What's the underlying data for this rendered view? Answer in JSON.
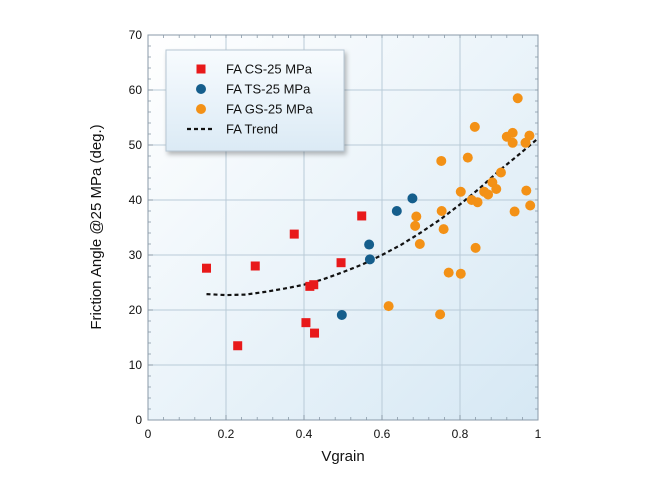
{
  "chart_data": {
    "type": "scatter",
    "title": "",
    "xlabel": "Vgrain",
    "ylabel": "Friction Angle @25 MPa (deg.)",
    "xlim": [
      0,
      1
    ],
    "ylim": [
      0,
      70
    ],
    "xticks": [
      0,
      0.2,
      0.4,
      0.6,
      0.8,
      1
    ],
    "xtick_labels": [
      "0",
      "0.2",
      "0.4",
      "0.6",
      "0.8",
      "1"
    ],
    "yticks": [
      0,
      10,
      20,
      30,
      40,
      50,
      60,
      70
    ],
    "ytick_labels": [
      "0",
      "10",
      "20",
      "30",
      "40",
      "50",
      "60",
      "70"
    ],
    "grid": true,
    "legend_position": "top-left",
    "series": [
      {
        "name": "FA CS-25 MPa",
        "marker": "square",
        "color": "#e8191a",
        "points": [
          [
            0.15,
            27.6
          ],
          [
            0.23,
            13.5
          ],
          [
            0.275,
            28.0
          ],
          [
            0.375,
            33.8
          ],
          [
            0.405,
            17.7
          ],
          [
            0.415,
            24.3
          ],
          [
            0.425,
            24.6
          ],
          [
            0.427,
            15.8
          ],
          [
            0.495,
            28.6
          ],
          [
            0.548,
            37.1
          ]
        ]
      },
      {
        "name": "FA TS-25 MPa",
        "marker": "circle",
        "color": "#155e8c",
        "points": [
          [
            0.497,
            19.1
          ],
          [
            0.567,
            31.9
          ],
          [
            0.569,
            29.2
          ],
          [
            0.638,
            38.0
          ],
          [
            0.678,
            40.3
          ]
        ]
      },
      {
        "name": "FA GS-25 MPa",
        "marker": "circle",
        "color": "#f39116",
        "points": [
          [
            0.617,
            20.7
          ],
          [
            0.685,
            35.3
          ],
          [
            0.688,
            37.0
          ],
          [
            0.697,
            32.0
          ],
          [
            0.749,
            19.2
          ],
          [
            0.752,
            47.1
          ],
          [
            0.753,
            38.0
          ],
          [
            0.758,
            34.7
          ],
          [
            0.771,
            26.8
          ],
          [
            0.802,
            26.6
          ],
          [
            0.802,
            41.5
          ],
          [
            0.82,
            47.7
          ],
          [
            0.83,
            40.0
          ],
          [
            0.838,
            53.3
          ],
          [
            0.84,
            31.3
          ],
          [
            0.845,
            39.6
          ],
          [
            0.862,
            41.5
          ],
          [
            0.872,
            41.0
          ],
          [
            0.883,
            43.2
          ],
          [
            0.893,
            42.0
          ],
          [
            0.905,
            45.0
          ],
          [
            0.92,
            51.5
          ],
          [
            0.935,
            50.4
          ],
          [
            0.935,
            52.2
          ],
          [
            0.94,
            37.9
          ],
          [
            0.948,
            58.5
          ],
          [
            0.968,
            50.4
          ],
          [
            0.97,
            41.7
          ],
          [
            0.978,
            51.7
          ],
          [
            0.98,
            39.0
          ]
        ]
      },
      {
        "name": "FA Trend",
        "type": "line",
        "style": "dashed",
        "color": "#111111",
        "points": [
          [
            0.15,
            22.9
          ],
          [
            0.2,
            22.7
          ],
          [
            0.25,
            22.8
          ],
          [
            0.3,
            23.3
          ],
          [
            0.35,
            23.9
          ],
          [
            0.4,
            24.6
          ],
          [
            0.45,
            25.6
          ],
          [
            0.5,
            26.9
          ],
          [
            0.55,
            28.3
          ],
          [
            0.6,
            30.0
          ],
          [
            0.65,
            31.9
          ],
          [
            0.7,
            34.1
          ],
          [
            0.75,
            36.5
          ],
          [
            0.8,
            39.2
          ],
          [
            0.85,
            42.1
          ],
          [
            0.9,
            45.3
          ],
          [
            0.95,
            48.2
          ],
          [
            1.0,
            51.2
          ]
        ]
      }
    ]
  }
}
